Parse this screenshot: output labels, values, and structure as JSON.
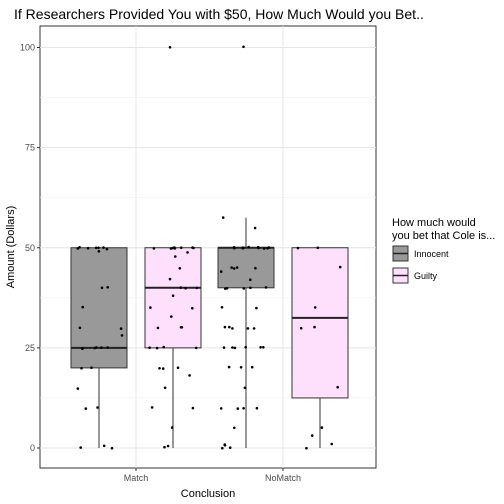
{
  "chart_data": {
    "type": "boxplot",
    "title": "If Researchers Provided You with $50, How Much Would you Bet..",
    "xlabel": "Conclusion",
    "ylabel": "Amount (Dollars)",
    "categories": [
      "Match",
      "NoMatch"
    ],
    "ylim": [
      -4,
      105
    ],
    "y_ticks": [
      0,
      25,
      50,
      75,
      100
    ],
    "grid": true,
    "legend": {
      "title_line1": "How much would",
      "title_line2": "you bet that Cole is...",
      "placement": "right"
    },
    "series": [
      {
        "name": "Innocent",
        "color": "#999999",
        "boxes": [
          {
            "category": "Match",
            "q1": 20,
            "median": 25,
            "q3": 50,
            "whisker_low": 0,
            "whisker_high": 50,
            "points": [
              50,
              50,
              50,
              50,
              50,
              50,
              49.5,
              49,
              40,
              40,
              35,
              30,
              30,
              28,
              25,
              25,
              25,
              25,
              25,
              20,
              20,
              15,
              10,
              10,
              0.5,
              0,
              0
            ]
          },
          {
            "category": "NoMatch",
            "q1": 40,
            "median": 50,
            "q3": 50,
            "whisker_low": 0,
            "whisker_high": 57.5,
            "points": [
              100,
              57.5,
              55,
              50,
              50,
              50,
              50,
              50,
              50,
              50,
              50,
              50,
              50,
              50,
              45,
              45,
              45,
              45,
              44,
              42,
              40,
              40,
              40,
              40,
              40,
              35,
              35,
              30,
              30,
              30,
              30,
              30,
              25,
              25,
              25,
              25,
              25,
              25,
              20,
              20,
              20,
              15,
              10,
              10,
              10,
              10,
              5,
              1,
              0.5,
              0,
              0
            ]
          }
        ]
      },
      {
        "name": "Guilty",
        "color": "#ffe0fc",
        "boxes": [
          {
            "category": "Match",
            "q1": 25,
            "median": 40,
            "q3": 50,
            "whisker_low": 0,
            "whisker_high": 50,
            "points": [
              100,
              50,
              50,
              50,
              50,
              50,
              50,
              50,
              50,
              49,
              48,
              45,
              42,
              40,
              40,
              40,
              38,
              35,
              35,
              33,
              30,
              30,
              30,
              25,
              25,
              25,
              25,
              20,
              20,
              20,
              18,
              15,
              10,
              10,
              5,
              0.5,
              0
            ]
          },
          {
            "category": "NoMatch",
            "q1": 12.5,
            "median": 32.5,
            "q3": 50,
            "whisker_low": 0,
            "whisker_high": 50,
            "points": [
              50,
              50,
              45,
              35,
              30,
              30,
              15,
              5,
              3,
              1,
              0
            ]
          }
        ]
      }
    ]
  }
}
